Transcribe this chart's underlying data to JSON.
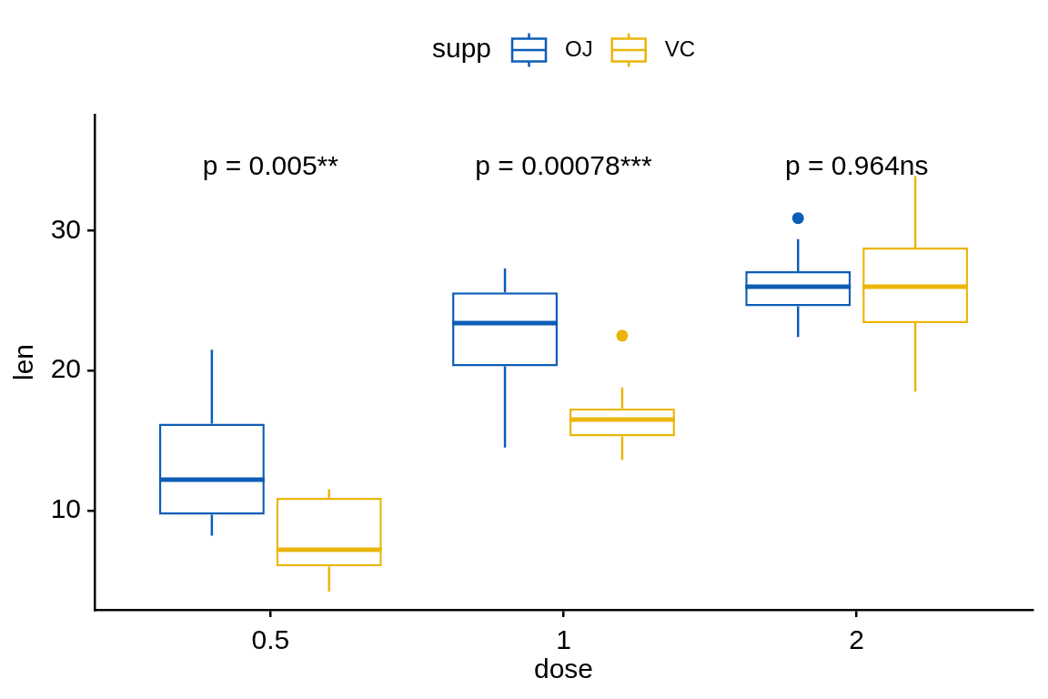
{
  "chart_data": {
    "type": "box",
    "categories": [
      "0.5",
      "1",
      "2"
    ],
    "xlabel": "dose",
    "ylabel": "len",
    "legend_title": "supp",
    "legend": "top",
    "series": [
      {
        "name": "OJ",
        "color": "#0c5db6",
        "boxes": [
          {
            "low": 8.2,
            "q1": 9.7,
            "median": 12.2,
            "q3": 16.2,
            "high": 21.5
          },
          {
            "low": 14.5,
            "q1": 20.3,
            "median": 23.4,
            "q3": 25.6,
            "high": 27.3
          },
          {
            "low": 22.4,
            "q1": 24.6,
            "median": 26.0,
            "q3": 27.1,
            "high": 29.4,
            "outliers": [
              30.9
            ]
          }
        ]
      },
      {
        "name": "VC",
        "color": "#ebb60b",
        "boxes": [
          {
            "low": 4.2,
            "q1": 6.0,
            "median": 7.2,
            "q3": 10.9,
            "high": 11.5
          },
          {
            "low": 13.6,
            "q1": 15.3,
            "median": 16.5,
            "q3": 17.3,
            "high": 18.8,
            "outliers": [
              22.5
            ]
          },
          {
            "low": 18.5,
            "q1": 23.4,
            "median": 26.0,
            "q3": 28.8,
            "high": 33.9
          }
        ]
      }
    ],
    "ylim": [
      2.9,
      38.3
    ],
    "yticks": [
      10,
      20,
      30
    ],
    "annotations": [
      "p = 0.005**",
      "p = 0.00078***",
      "p = 0.964ns"
    ]
  }
}
